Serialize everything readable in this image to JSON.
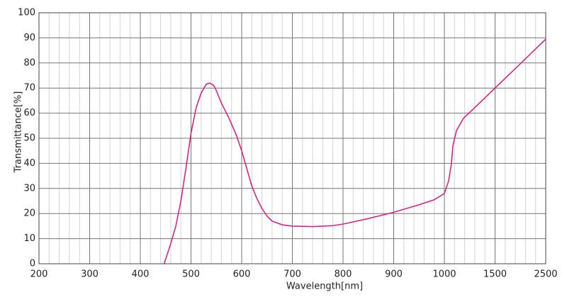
{
  "chart_data": {
    "type": "line",
    "x_label": "Wavelength[nm]",
    "y_label": "Transmittance[%]",
    "x_scale": "segmented",
    "xlim": [
      200,
      2500
    ],
    "xticks": [
      200,
      300,
      400,
      500,
      600,
      700,
      800,
      900,
      1000,
      1500,
      2500
    ],
    "x_minor_ticks": [
      220,
      240,
      260,
      280,
      320,
      340,
      360,
      380,
      420,
      440,
      460,
      480,
      520,
      540,
      560,
      580,
      620,
      640,
      660,
      680,
      720,
      740,
      760,
      780,
      820,
      840,
      860,
      880,
      920,
      940,
      960,
      980,
      1100,
      1200,
      1300,
      1400,
      1700,
      1900,
      2100,
      2300
    ],
    "ylim": [
      0,
      100
    ],
    "yticks": [
      0,
      10,
      20,
      30,
      40,
      50,
      60,
      70,
      80,
      90,
      100
    ],
    "grid": true,
    "series": [
      {
        "name": "Transmittance",
        "color": "#e0157f",
        "x": [
          447,
          460,
          470,
          480,
          490,
          500,
          510,
          520,
          530,
          537,
          545,
          550,
          560,
          575,
          590,
          600,
          610,
          620,
          630,
          640,
          650,
          660,
          680,
          700,
          740,
          780,
          800,
          850,
          900,
          950,
          980,
          1000,
          1042,
          1070,
          1084,
          1119,
          1189,
          1294,
          1500,
          2000,
          2500
        ],
        "values": [
          0,
          8,
          15,
          25,
          38,
          52,
          62,
          68,
          71.5,
          72,
          71,
          69,
          64,
          58,
          51,
          45,
          38,
          31,
          26,
          22,
          19,
          17,
          15.5,
          15,
          14.8,
          15.2,
          15.8,
          18,
          20.5,
          23.5,
          25.5,
          28,
          33,
          40,
          47,
          53,
          58,
          62,
          70,
          79.7,
          89.5
        ]
      }
    ]
  }
}
